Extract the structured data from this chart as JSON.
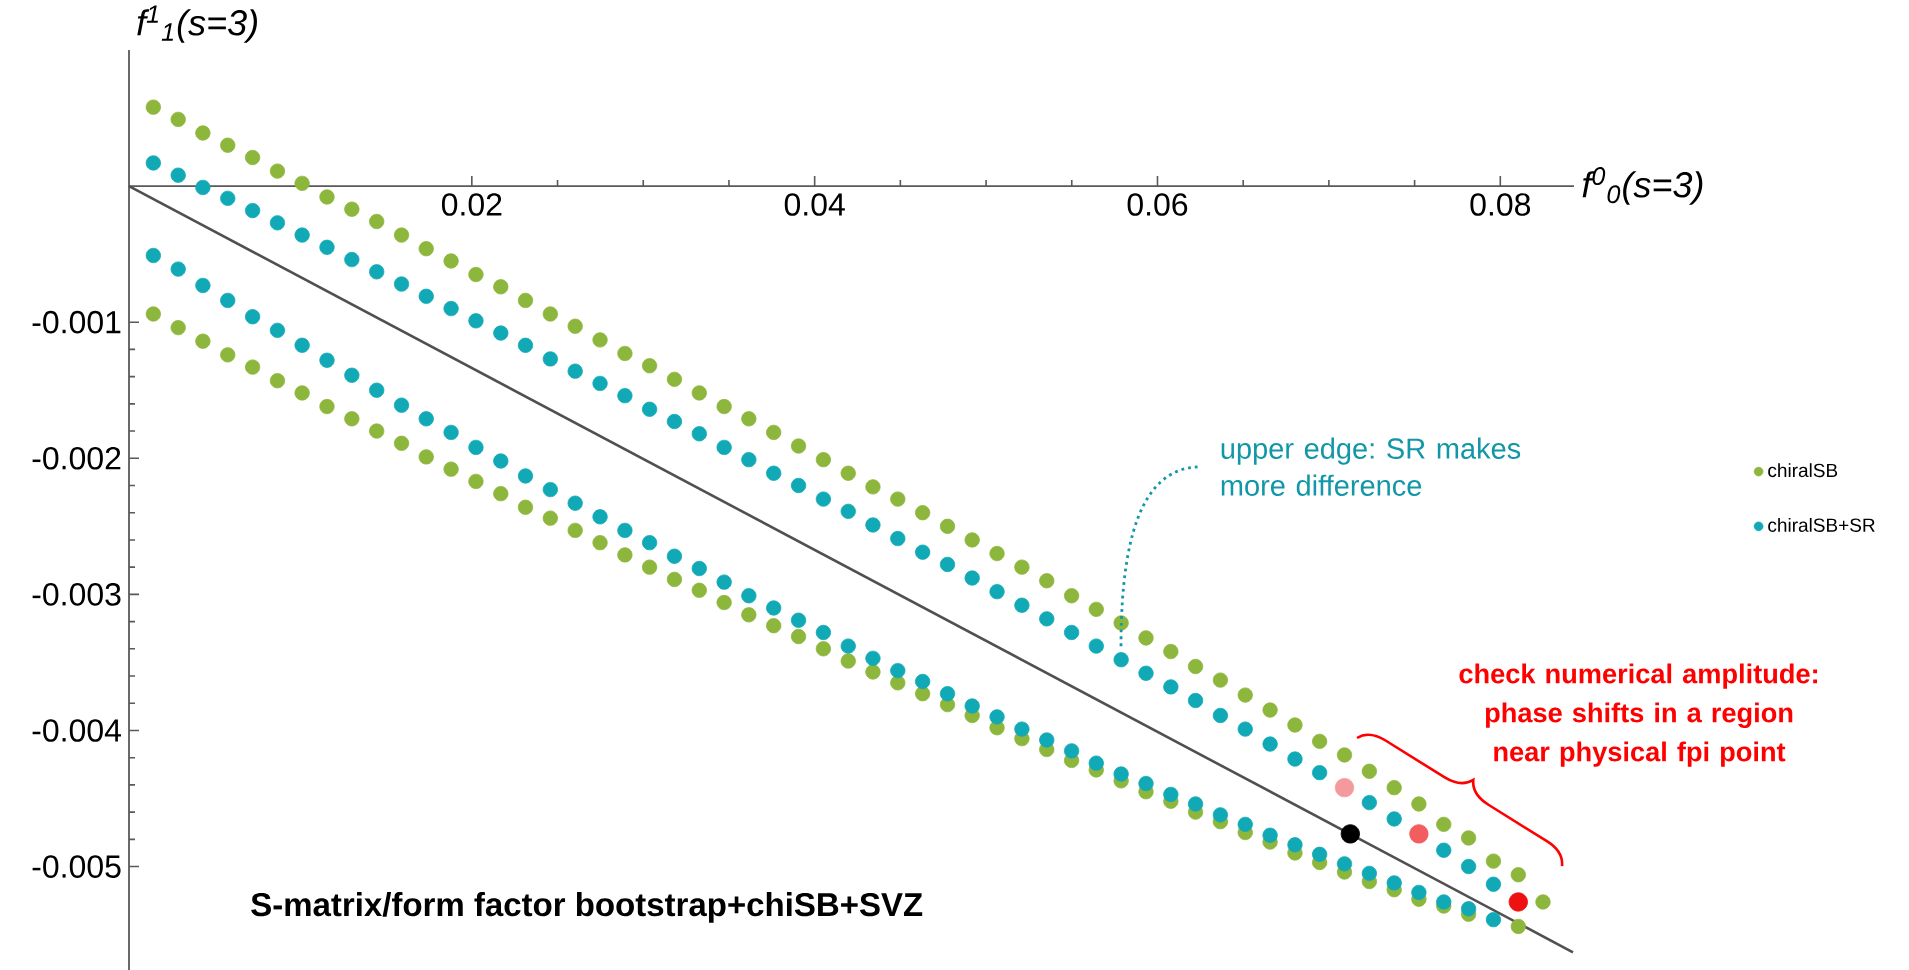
{
  "chart_data": {
    "type": "scatter",
    "xlabel": "f$^{0}$$_{0}$(s=3)",
    "ylabel": "f$^{1}$$_{1}$(s=3)",
    "xlim": [
      0,
      0.0843
    ],
    "ylim": [
      -0.00576,
      0.001
    ],
    "xticks": [
      0.02,
      0.04,
      0.06,
      0.08
    ],
    "yticks": [
      -0.005,
      -0.004,
      -0.003,
      -0.002,
      -0.001
    ],
    "legend": "right",
    "annotations": [
      "upper edge: SR makes more difference",
      "check numerical amplitude: phase shifts in a region near physical fpi point",
      "S-matrix/form factor bootstrap+chiSB+SVZ"
    ],
    "series": [
      {
        "name": "chiralSB",
        "color": "#8db63c",
        "marker": "circle",
        "x": [
          0.00142,
          0.00287,
          0.00431,
          0.00576,
          0.00721,
          0.00866,
          0.0101,
          0.01155,
          0.013,
          0.01445,
          0.0159,
          0.01734,
          0.01879,
          0.02024,
          0.02169,
          0.02313,
          0.02458,
          0.02603,
          0.02748,
          0.02893,
          0.03037,
          0.03182,
          0.03327,
          0.03472,
          0.03616,
          0.03761,
          0.03906,
          0.04051,
          0.04196,
          0.0434,
          0.04485,
          0.0463,
          0.04775,
          0.04919,
          0.05064,
          0.05209,
          0.05354,
          0.05499,
          0.05643,
          0.05788,
          0.05933,
          0.06078,
          0.06222,
          0.06367,
          0.06512,
          0.06657,
          0.06802,
          0.06946,
          0.07091,
          0.07236,
          0.07381,
          0.07525,
          0.0767,
          0.07815,
          0.0796,
          0.08105,
          0.08249,
          0.00142,
          0.00287,
          0.00431,
          0.00576,
          0.00721,
          0.00866,
          0.0101,
          0.01155,
          0.013,
          0.01445,
          0.0159,
          0.01734,
          0.01879,
          0.02024,
          0.02169,
          0.02313,
          0.02458,
          0.02603,
          0.02748,
          0.02893,
          0.03037,
          0.03182,
          0.03327,
          0.03472,
          0.03616,
          0.03761,
          0.03906,
          0.04051,
          0.04196,
          0.0434,
          0.04485,
          0.0463,
          0.04775,
          0.04919,
          0.05064,
          0.05209,
          0.05354,
          0.05499,
          0.05643,
          0.05788,
          0.05933,
          0.06078,
          0.06222,
          0.06367,
          0.06512,
          0.06657,
          0.06802,
          0.06946,
          0.07091,
          0.07236,
          0.07381,
          0.07525,
          0.0767,
          0.07815,
          0.0796,
          0.08105
        ],
        "values": [
          0.00058,
          0.00049,
          0.00039,
          0.0003,
          0.00021,
          0.00011,
          2e-05,
          -8e-05,
          -0.00017,
          -0.00026,
          -0.00036,
          -0.00046,
          -0.00055,
          -0.00065,
          -0.00074,
          -0.00084,
          -0.00094,
          -0.00103,
          -0.00113,
          -0.00123,
          -0.00132,
          -0.00142,
          -0.00152,
          -0.00162,
          -0.00171,
          -0.00181,
          -0.00191,
          -0.00201,
          -0.00211,
          -0.00221,
          -0.0023,
          -0.0024,
          -0.0025,
          -0.0026,
          -0.0027,
          -0.0028,
          -0.0029,
          -0.00301,
          -0.00311,
          -0.00321,
          -0.00332,
          -0.00342,
          -0.00353,
          -0.00363,
          -0.00374,
          -0.00385,
          -0.00396,
          -0.00408,
          -0.00418,
          -0.0043,
          -0.00442,
          -0.00454,
          -0.00469,
          -0.00479,
          -0.00496,
          -0.00506,
          -0.00526,
          -0.00094,
          -0.00104,
          -0.00114,
          -0.00124,
          -0.00133,
          -0.00143,
          -0.00152,
          -0.00162,
          -0.00171,
          -0.0018,
          -0.00189,
          -0.00199,
          -0.00208,
          -0.00217,
          -0.00226,
          -0.00236,
          -0.00244,
          -0.00253,
          -0.00262,
          -0.00271,
          -0.0028,
          -0.00289,
          -0.00297,
          -0.00306,
          -0.00315,
          -0.00323,
          -0.00331,
          -0.0034,
          -0.00349,
          -0.00357,
          -0.00365,
          -0.00373,
          -0.00381,
          -0.00389,
          -0.00398,
          -0.00406,
          -0.00414,
          -0.00422,
          -0.00429,
          -0.00437,
          -0.00445,
          -0.00452,
          -0.0046,
          -0.00467,
          -0.00475,
          -0.00482,
          -0.0049,
          -0.00497,
          -0.00504,
          -0.00511,
          -0.00517,
          -0.00524,
          -0.00529,
          -0.00535,
          null,
          -0.00544
        ]
      },
      {
        "name": "chiralSB+SR",
        "color": "#10a9b5",
        "marker": "circle",
        "x": [
          0.00142,
          0.00287,
          0.00431,
          0.00576,
          0.00721,
          0.00866,
          0.0101,
          0.01155,
          0.013,
          0.01445,
          0.0159,
          0.01734,
          0.01879,
          0.02024,
          0.02169,
          0.02313,
          0.02458,
          0.02603,
          0.02748,
          0.02893,
          0.03037,
          0.03182,
          0.03327,
          0.03472,
          0.03616,
          0.03761,
          0.03906,
          0.04051,
          0.04196,
          0.0434,
          0.04485,
          0.0463,
          0.04775,
          0.04919,
          0.05064,
          0.05209,
          0.05354,
          0.05499,
          0.05643,
          0.05788,
          0.05933,
          0.06078,
          0.06222,
          0.06367,
          0.06512,
          0.06657,
          0.06802,
          0.06946,
          0.07236,
          0.07381,
          0.0767,
          0.07815,
          0.0796,
          0.00142,
          0.00287,
          0.00431,
          0.00576,
          0.00721,
          0.00866,
          0.0101,
          0.01155,
          0.013,
          0.01445,
          0.0159,
          0.01734,
          0.01879,
          0.02024,
          0.02169,
          0.02313,
          0.02458,
          0.02603,
          0.02748,
          0.02893,
          0.03037,
          0.03182,
          0.03327,
          0.03472,
          0.03616,
          0.03761,
          0.03906,
          0.04051,
          0.04196,
          0.0434,
          0.04485,
          0.0463,
          0.04775,
          0.04919,
          0.05064,
          0.05209,
          0.05354,
          0.05499,
          0.05643,
          0.05788,
          0.05933,
          0.06078,
          0.06222,
          0.06367,
          0.06512,
          0.06657,
          0.06802,
          0.06946,
          0.07091,
          0.07236,
          0.07381,
          0.07525,
          0.0767,
          0.07815,
          0.0796
        ],
        "values": [
          0.00017,
          8e-05,
          -1e-05,
          -9e-05,
          -0.00018,
          -0.00027,
          -0.00036,
          -0.00045,
          -0.00054,
          -0.00063,
          -0.00072,
          -0.00081,
          -0.0009,
          -0.00099,
          -0.00108,
          -0.00117,
          -0.00127,
          -0.00136,
          -0.00145,
          -0.00154,
          -0.00164,
          -0.00173,
          -0.00182,
          -0.00192,
          -0.00201,
          -0.00211,
          -0.0022,
          -0.0023,
          -0.00239,
          -0.00249,
          -0.00259,
          -0.00269,
          -0.00278,
          -0.00288,
          -0.00298,
          -0.00308,
          -0.00318,
          -0.00328,
          -0.00338,
          -0.00348,
          -0.00358,
          -0.00368,
          -0.00378,
          -0.00389,
          -0.00399,
          -0.0041,
          -0.00421,
          -0.00431,
          -0.00453,
          -0.00465,
          -0.00488,
          -0.005,
          -0.00513,
          -0.00051,
          -0.00061,
          -0.00073,
          -0.00084,
          -0.00096,
          -0.00106,
          -0.00117,
          -0.00128,
          -0.00139,
          -0.0015,
          -0.00161,
          -0.00171,
          -0.00181,
          -0.00192,
          -0.00202,
          -0.00213,
          -0.00223,
          -0.00233,
          -0.00243,
          -0.00253,
          -0.00262,
          -0.00272,
          -0.00281,
          -0.00291,
          -0.00301,
          -0.0031,
          -0.00319,
          -0.00328,
          -0.00338,
          -0.00347,
          -0.00356,
          -0.00364,
          -0.00373,
          -0.00382,
          -0.0039,
          -0.00399,
          -0.00407,
          -0.00415,
          -0.00424,
          -0.00432,
          -0.00439,
          -0.00447,
          -0.00454,
          -0.00462,
          -0.00469,
          -0.00477,
          -0.00484,
          -0.00491,
          -0.00498,
          -0.00505,
          -0.00512,
          -0.00519,
          -0.00526,
          -0.00531,
          -0.00539
        ]
      },
      {
        "type": "line",
        "color": "#505050",
        "line_style": "solid",
        "marker": "none",
        "x": [
          0,
          0.08424
        ],
        "values": [
          0,
          -0.00563
        ]
      },
      {
        "marker": "circle",
        "x": [
          0.07091,
          0.07525,
          0.08105,
          0.07125
        ],
        "values": [
          -0.00442,
          -0.00476,
          -0.00526,
          -0.00476
        ],
        "colors": [
          "#f59a9c",
          "#f25d60",
          "#ee1111",
          "#000000"
        ]
      }
    ]
  }
}
